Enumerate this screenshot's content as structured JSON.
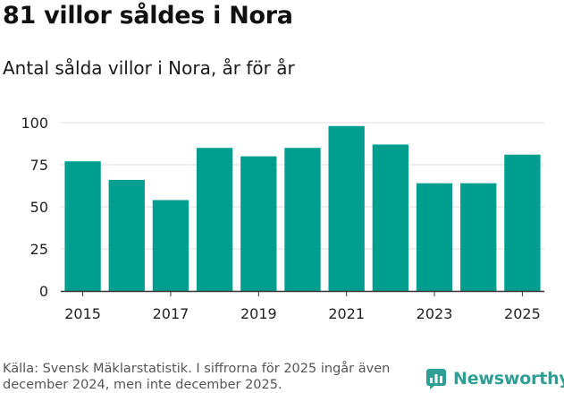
{
  "header": {
    "title": "81 villor såldes i Nora",
    "subtitle": "Antal sålda villor i Nora, år för år"
  },
  "footer": {
    "source": "Källa: Svensk Mäklarstatistik. I siffrorna för 2025 ingår även december 2024, men inte december 2025.",
    "brand": "Newsworthy"
  },
  "colors": {
    "bar": "#009e8e",
    "grid": "#dddddd",
    "axis": "#333333",
    "brand": "#2f9f95"
  },
  "chart_data": {
    "type": "bar",
    "title": "Antal sålda villor i Nora, år för år",
    "xlabel": "",
    "ylabel": "",
    "categories": [
      "2015",
      "2016",
      "2017",
      "2018",
      "2019",
      "2020",
      "2021",
      "2022",
      "2023",
      "2024",
      "2025"
    ],
    "values": [
      77,
      66,
      54,
      85,
      80,
      85,
      98,
      87,
      64,
      64,
      81
    ],
    "x_tick_labels": [
      "2015",
      "2017",
      "2019",
      "2021",
      "2023",
      "2025"
    ],
    "y_ticks": [
      0,
      25,
      50,
      75,
      100
    ],
    "ylim": [
      0,
      100
    ],
    "grid": true
  }
}
